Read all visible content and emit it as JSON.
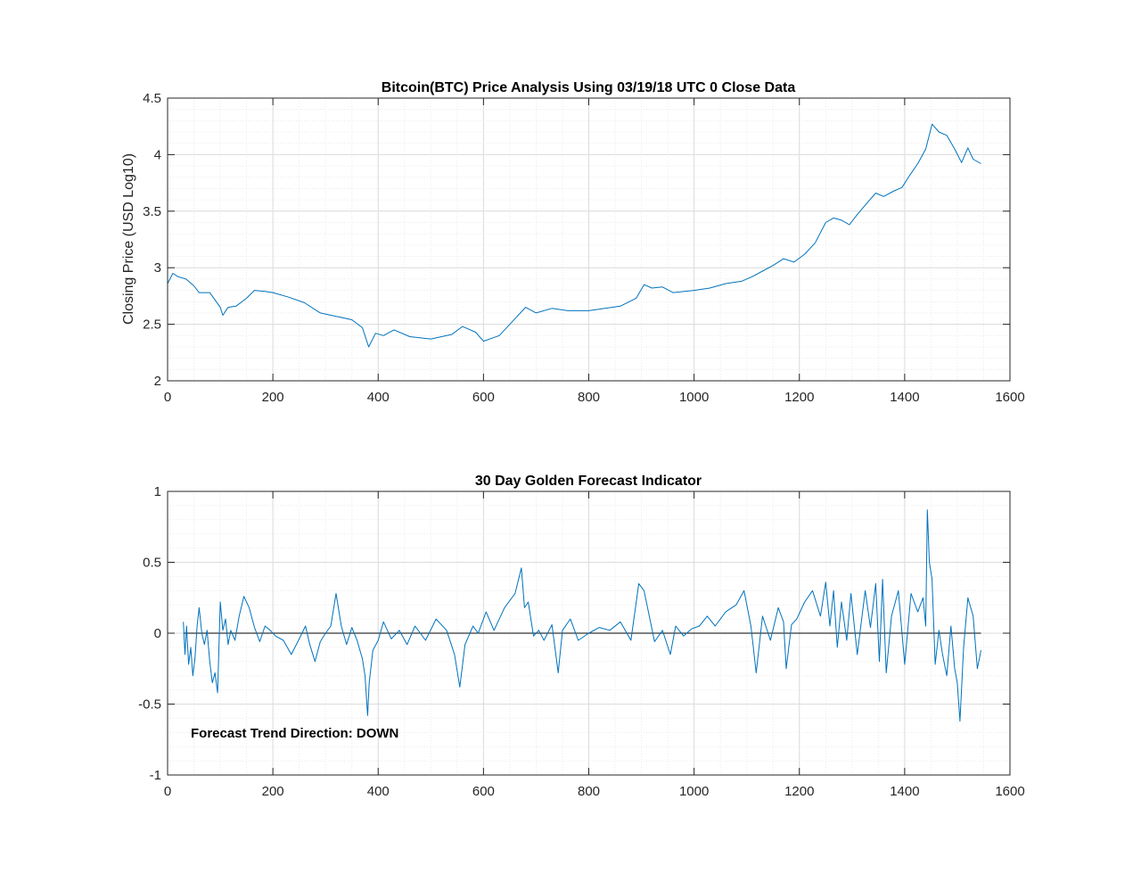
{
  "colors": {
    "series": "#0072bd",
    "grid_major": "#dcdcdc",
    "grid_minor": "#ececec",
    "axis": "#262626",
    "zero_line": "#000000"
  },
  "chart_data": [
    {
      "type": "line",
      "title": "Bitcoin(BTC) Price Analysis Using 03/19/18 UTC 0 Close Data",
      "xlabel": "",
      "ylabel": "Closing Price (USD Log10)",
      "xlim": [
        0,
        1600
      ],
      "ylim": [
        2,
        4.5
      ],
      "xticks": [
        0,
        200,
        400,
        600,
        800,
        1000,
        1200,
        1400,
        1600
      ],
      "yticks": [
        2,
        2.5,
        3,
        3.5,
        4,
        4.5
      ],
      "ytick_labels": [
        "2",
        "2.5",
        "3",
        "3.5",
        "4",
        "4.5"
      ],
      "grid": true,
      "minor_grid": true,
      "series": [
        {
          "x": [
            0,
            10,
            20,
            35,
            50,
            60,
            80,
            100,
            105,
            115,
            130,
            150,
            165,
            185,
            200,
            230,
            260,
            290,
            320,
            350,
            370,
            382,
            395,
            410,
            430,
            460,
            500,
            540,
            560,
            585,
            600,
            630,
            660,
            680,
            700,
            730,
            760,
            800,
            860,
            890,
            905,
            920,
            940,
            960,
            1000,
            1030,
            1060,
            1090,
            1110,
            1130,
            1150,
            1170,
            1190,
            1210,
            1230,
            1250,
            1265,
            1280,
            1295,
            1310,
            1330,
            1345,
            1360,
            1380,
            1395,
            1410,
            1425,
            1440,
            1452,
            1465,
            1480,
            1495,
            1508,
            1520,
            1530,
            1545
          ],
          "y": [
            2.86,
            2.95,
            2.92,
            2.9,
            2.84,
            2.78,
            2.78,
            2.65,
            2.58,
            2.65,
            2.66,
            2.73,
            2.8,
            2.79,
            2.78,
            2.74,
            2.69,
            2.6,
            2.57,
            2.54,
            2.47,
            2.3,
            2.42,
            2.4,
            2.45,
            2.39,
            2.37,
            2.41,
            2.48,
            2.43,
            2.35,
            2.4,
            2.55,
            2.65,
            2.6,
            2.64,
            2.62,
            2.62,
            2.66,
            2.73,
            2.85,
            2.82,
            2.83,
            2.78,
            2.8,
            2.82,
            2.86,
            2.88,
            2.92,
            2.97,
            3.02,
            3.08,
            3.05,
            3.12,
            3.22,
            3.4,
            3.44,
            3.42,
            3.38,
            3.47,
            3.58,
            3.66,
            3.63,
            3.68,
            3.71,
            3.82,
            3.92,
            4.05,
            4.27,
            4.2,
            4.17,
            4.05,
            3.93,
            4.06,
            3.96,
            3.92
          ]
        }
      ]
    },
    {
      "type": "line",
      "title": "30 Day Golden Forecast Indicator",
      "xlabel": "",
      "ylabel": "",
      "xlim": [
        0,
        1600
      ],
      "ylim": [
        -1,
        1
      ],
      "xticks": [
        0,
        200,
        400,
        600,
        800,
        1000,
        1200,
        1400,
        1600
      ],
      "yticks": [
        -1,
        -0.5,
        0,
        0.5,
        1
      ],
      "ytick_labels": [
        "-1",
        "-0.5",
        "0",
        "0.5",
        "1"
      ],
      "grid": true,
      "minor_grid": true,
      "annotation": "Forecast Trend Direction: DOWN",
      "series": [
        {
          "x": [
            30,
            33,
            36,
            40,
            44,
            48,
            52,
            56,
            60,
            65,
            70,
            75,
            80,
            85,
            90,
            95,
            100,
            105,
            110,
            115,
            120,
            128,
            136,
            145,
            155,
            165,
            175,
            185,
            195,
            205,
            220,
            235,
            250,
            262,
            270,
            280,
            290,
            300,
            310,
            320,
            330,
            340,
            350,
            360,
            370,
            375,
            380,
            383,
            390,
            400,
            410,
            425,
            440,
            455,
            470,
            490,
            510,
            530,
            545,
            555,
            565,
            580,
            590,
            598,
            605,
            620,
            640,
            660,
            672,
            678,
            685,
            695,
            705,
            715,
            730,
            742,
            750,
            765,
            780,
            800,
            820,
            840,
            860,
            880,
            895,
            905,
            915,
            925,
            940,
            955,
            965,
            980,
            995,
            1010,
            1025,
            1040,
            1060,
            1080,
            1095,
            1108,
            1118,
            1130,
            1145,
            1160,
            1170,
            1175,
            1185,
            1195,
            1210,
            1225,
            1240,
            1250,
            1258,
            1265,
            1272,
            1280,
            1290,
            1298,
            1310,
            1325,
            1335,
            1345,
            1352,
            1358,
            1365,
            1375,
            1388,
            1400,
            1412,
            1425,
            1435,
            1440,
            1443,
            1447,
            1452,
            1458,
            1465,
            1472,
            1480,
            1488,
            1495,
            1500,
            1505,
            1512,
            1520,
            1530,
            1538,
            1545
          ],
          "y": [
            0.08,
            -0.15,
            0.05,
            -0.22,
            -0.1,
            -0.3,
            -0.18,
            0.05,
            0.18,
            0.0,
            -0.08,
            0.02,
            -0.2,
            -0.35,
            -0.28,
            -0.42,
            0.22,
            0.02,
            0.1,
            -0.08,
            0.02,
            -0.05,
            0.12,
            0.26,
            0.18,
            0.04,
            -0.06,
            0.05,
            0.02,
            -0.02,
            -0.05,
            -0.15,
            -0.04,
            0.05,
            -0.08,
            -0.2,
            -0.06,
            0.0,
            0.05,
            0.28,
            0.05,
            -0.08,
            0.04,
            -0.05,
            -0.18,
            -0.3,
            -0.58,
            -0.35,
            -0.12,
            -0.05,
            0.08,
            -0.04,
            0.02,
            -0.08,
            0.05,
            -0.05,
            0.1,
            0.02,
            -0.15,
            -0.38,
            -0.08,
            0.05,
            0.0,
            0.08,
            0.15,
            0.02,
            0.18,
            0.28,
            0.46,
            0.18,
            0.22,
            -0.02,
            0.02,
            -0.05,
            0.06,
            -0.28,
            0.02,
            0.1,
            -0.05,
            0.0,
            0.04,
            0.02,
            0.08,
            -0.05,
            0.35,
            0.3,
            0.12,
            -0.06,
            0.02,
            -0.15,
            0.05,
            -0.02,
            0.03,
            0.05,
            0.12,
            0.05,
            0.15,
            0.2,
            0.3,
            0.05,
            -0.28,
            0.12,
            -0.05,
            0.18,
            0.08,
            -0.25,
            0.06,
            0.1,
            0.22,
            0.3,
            0.12,
            0.36,
            0.05,
            0.3,
            -0.1,
            0.22,
            -0.05,
            0.28,
            -0.15,
            0.3,
            0.04,
            0.35,
            -0.2,
            0.38,
            -0.28,
            0.12,
            0.3,
            -0.22,
            0.28,
            0.15,
            0.25,
            0.05,
            0.87,
            0.5,
            0.38,
            -0.22,
            0.02,
            -0.15,
            -0.3,
            0.05,
            -0.25,
            -0.35,
            -0.62,
            -0.1,
            0.25,
            0.12,
            -0.25,
            -0.12
          ]
        }
      ]
    }
  ]
}
